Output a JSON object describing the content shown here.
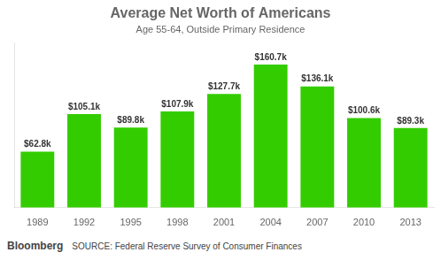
{
  "chart_data": {
    "type": "bar",
    "title": "Average Net Worth of Americans",
    "subtitle": "Age 55-64, Outside Primary Residence",
    "categories": [
      "1989",
      "1992",
      "1995",
      "1998",
      "2001",
      "2004",
      "2007",
      "2010",
      "2013"
    ],
    "values": [
      62.8,
      105.1,
      89.8,
      107.9,
      127.7,
      160.7,
      136.1,
      100.6,
      89.3
    ],
    "value_labels": [
      "$62.8k",
      "$105.1k",
      "$89.8k",
      "$107.9k",
      "$127.7k",
      "$160.7k",
      "$136.1k",
      "$100.6k",
      "$89.3k"
    ],
    "data_labels": true,
    "color": "#33cc00",
    "ylim": [
      0,
      185
    ],
    "tick_labels": "x",
    "grid": false,
    "annotations": [
      "Bloomberg",
      "SOURCE: Federal Reserve Survey of Consumer Finances"
    ]
  }
}
